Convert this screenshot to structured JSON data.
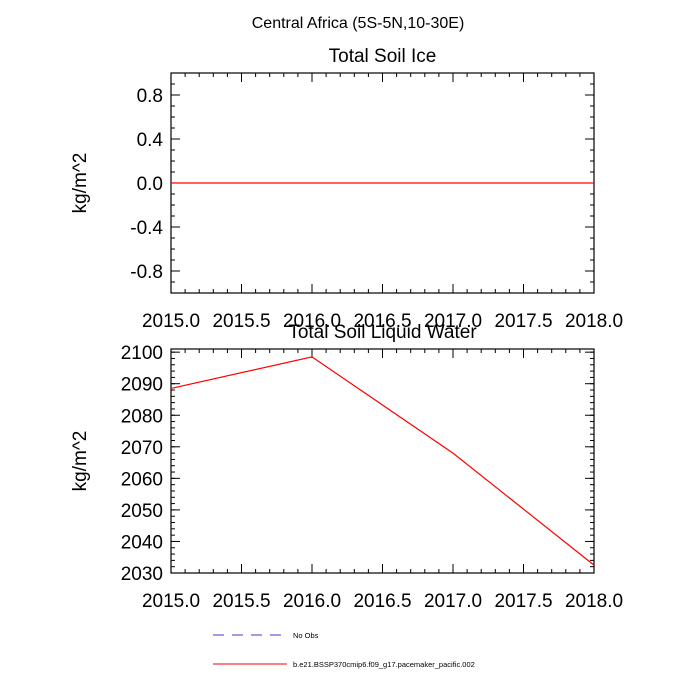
{
  "figure_title": "Central Africa (5S-5N,10-30E)",
  "legend": [
    {
      "label": "No Obs",
      "color": "#3c3ccd",
      "style": "dashed"
    },
    {
      "label": "b.e21.BSSP370cmip6.f09_g17.pacemaker_pacific.002",
      "color": "#ff0000",
      "style": "solid"
    }
  ],
  "chart_data": [
    {
      "type": "line",
      "title": "Total Soil Ice",
      "xlabel": "",
      "ylabel": "kg/m^2",
      "xlim": [
        2015.0,
        2018.0
      ],
      "ylim": [
        -1.0,
        1.0
      ],
      "xticks": [
        "2015.0",
        "2015.5",
        "2016.0",
        "2016.5",
        "2017.0",
        "2017.5",
        "2018.0"
      ],
      "xtick_values": [
        2015.0,
        2015.5,
        2016.0,
        2016.5,
        2017.0,
        2017.5,
        2018.0
      ],
      "yticks": [
        "0.8",
        "0.4",
        "0.0",
        "-0.4",
        "-0.8"
      ],
      "ytick_values": [
        0.8,
        0.4,
        0.0,
        -0.4,
        -0.8
      ],
      "series": [
        {
          "name": "b.e21.BSSP370cmip6.f09_g17.pacemaker_pacific.002",
          "color": "#ff0000",
          "x": [
            2015.0,
            2016.0,
            2017.0,
            2018.0
          ],
          "y": [
            0.0,
            0.0,
            0.0,
            0.0
          ]
        }
      ]
    },
    {
      "type": "line",
      "title": "Total Soil Liquid Water",
      "xlabel": "",
      "ylabel": "kg/m^2",
      "xlim": [
        2015.0,
        2018.0
      ],
      "ylim": [
        2030,
        2101
      ],
      "xticks": [
        "2015.0",
        "2015.5",
        "2016.0",
        "2016.5",
        "2017.0",
        "2017.5",
        "2018.0"
      ],
      "xtick_values": [
        2015.0,
        2015.5,
        2016.0,
        2016.5,
        2017.0,
        2017.5,
        2018.0
      ],
      "yticks": [
        "2100",
        "2090",
        "2080",
        "2070",
        "2060",
        "2050",
        "2040",
        "2030"
      ],
      "ytick_values": [
        2100,
        2090,
        2080,
        2070,
        2060,
        2050,
        2040,
        2030
      ],
      "series": [
        {
          "name": "b.e21.BSSP370cmip6.f09_g17.pacemaker_pacific.002",
          "color": "#ff0000",
          "x": [
            2015.0,
            2016.0,
            2017.0,
            2018.0
          ],
          "y": [
            2088.5,
            2098.5,
            2068.0,
            2032.5
          ]
        }
      ]
    }
  ]
}
